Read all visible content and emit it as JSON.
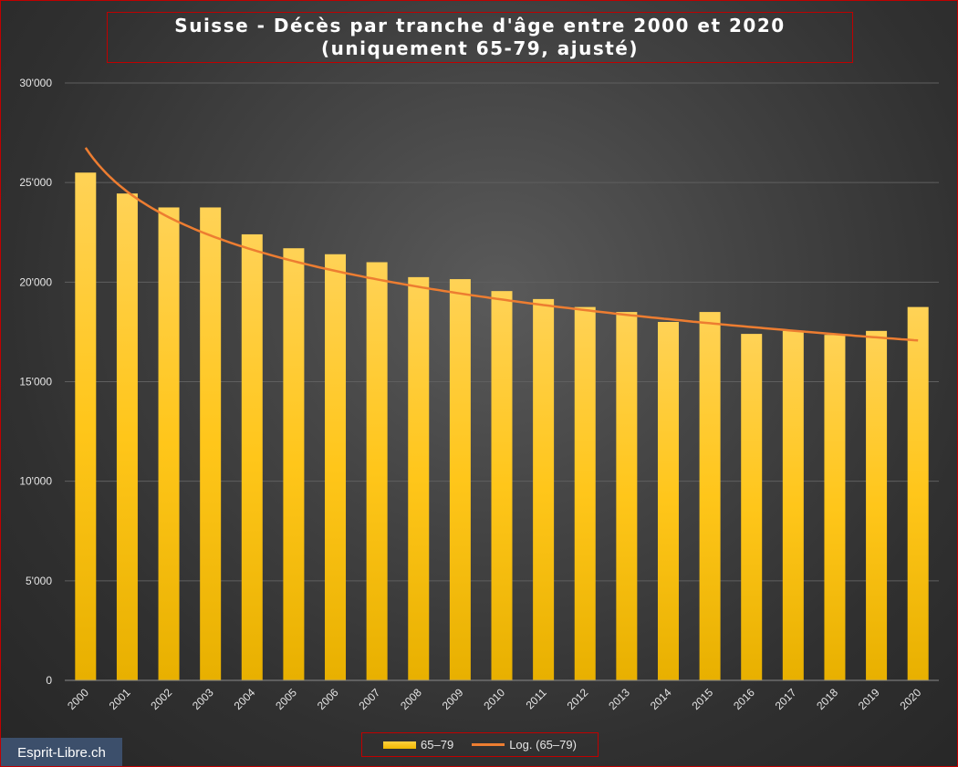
{
  "chart_data": {
    "type": "bar",
    "title": "Suisse - Décès par tranche d'âge entre 2000 et 2020 (uniquement 65-79, ajusté)",
    "categories": [
      "2000",
      "2001",
      "2002",
      "2003",
      "2004",
      "2005",
      "2006",
      "2007",
      "2008",
      "2009",
      "2010",
      "2011",
      "2012",
      "2013",
      "2014",
      "2015",
      "2016",
      "2017",
      "2018",
      "2019",
      "2020"
    ],
    "series": [
      {
        "name": "65–79",
        "color": "#ffc000",
        "values": [
          25500,
          24450,
          23750,
          23750,
          22400,
          21700,
          21400,
          21000,
          20250,
          20150,
          19550,
          19150,
          18750,
          18500,
          18000,
          18500,
          17400,
          17550,
          17350,
          17550,
          18750
        ]
      }
    ],
    "trendline": {
      "name": "Log. (65–79)",
      "type": "logarithmic",
      "color": "#ed7d31",
      "values": [
        26750,
        24550,
        23260,
        22350,
        21630,
        21050,
        20560,
        20130,
        19760,
        19420,
        19120,
        18840,
        18590,
        18350,
        18130,
        17930,
        17730,
        17550,
        17380,
        17220,
        17070
      ]
    },
    "ylim": [
      0,
      30000
    ],
    "yticks": [
      0,
      5000,
      10000,
      15000,
      20000,
      25000,
      30000
    ],
    "ytick_labels": [
      "0",
      "5'000",
      "10'000",
      "15'000",
      "20'000",
      "25'000",
      "30'000"
    ],
    "xlabel": "",
    "ylabel": "",
    "grid": true,
    "legend_position": "bottom"
  },
  "legend": {
    "bar_label": "65–79",
    "line_label": "Log. (65–79)"
  },
  "watermark": "Esprit-Libre.ch"
}
